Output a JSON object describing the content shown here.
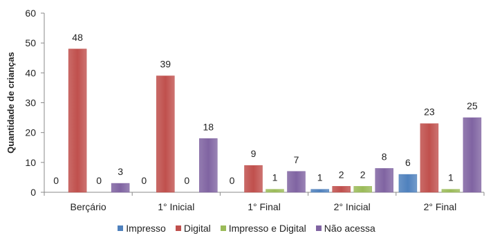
{
  "chart_data": {
    "type": "bar",
    "title": "",
    "xlabel": "",
    "ylabel": "Quantidade de crianças",
    "ylim": [
      0,
      60
    ],
    "yticks": [
      0,
      10,
      20,
      30,
      40,
      50,
      60
    ],
    "grid": false,
    "legend_position": "bottom",
    "categories": [
      "Berçário",
      "1° Inicial",
      "1° Final",
      "2° Inicial",
      "2° Final"
    ],
    "series": [
      {
        "name": "Impresso",
        "color": "#4F81BD",
        "values": [
          0,
          0,
          0,
          1,
          6
        ]
      },
      {
        "name": "Digital",
        "color": "#C0504D",
        "values": [
          48,
          39,
          9,
          2,
          23
        ]
      },
      {
        "name": "Impresso e Digital",
        "color": "#9BBB59",
        "values": [
          0,
          0,
          1,
          2,
          1
        ]
      },
      {
        "name": "Não acessa",
        "color": "#8064A2",
        "values": [
          3,
          18,
          7,
          8,
          25
        ]
      }
    ]
  }
}
